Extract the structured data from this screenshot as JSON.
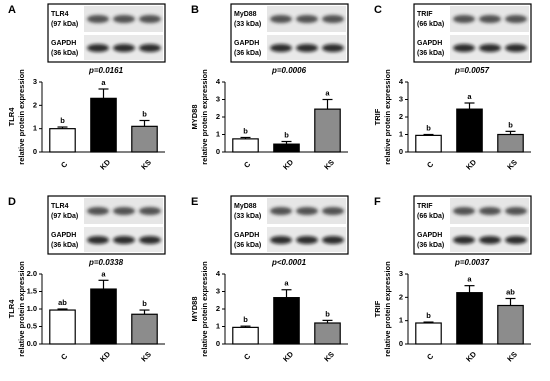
{
  "chart_data": [
    {
      "type": "bar",
      "panel": "A",
      "blot": [
        "TLR4",
        "(97 kDa)",
        "GAPDH",
        "(36 kDa)"
      ],
      "p_value": "p=0.0161",
      "y_label": [
        "TLR4",
        "relative protein expression"
      ],
      "categories": [
        "C",
        "KD",
        "KS"
      ],
      "values": [
        1.0,
        2.3,
        1.1
      ],
      "errors": [
        0.07,
        0.4,
        0.25
      ],
      "letters": [
        "b",
        "a",
        "b"
      ],
      "colors": [
        "#ffffff",
        "#000000",
        "#8c8c8c"
      ],
      "ylim": [
        0,
        3
      ],
      "yticks": [
        0,
        1,
        2,
        3
      ]
    },
    {
      "type": "bar",
      "panel": "B",
      "blot": [
        "MyD88",
        "(33 kDa)",
        "GAPDH",
        "(36 kDa)"
      ],
      "p_value": "p=0.0006",
      "y_label": [
        "MYD88",
        "relative protein expression"
      ],
      "categories": [
        "C",
        "KD",
        "KS"
      ],
      "values": [
        0.75,
        0.45,
        2.45
      ],
      "errors": [
        0.08,
        0.15,
        0.55
      ],
      "letters": [
        "b",
        "b",
        "a"
      ],
      "colors": [
        "#ffffff",
        "#000000",
        "#8c8c8c"
      ],
      "ylim": [
        0,
        4
      ],
      "yticks": [
        0,
        1,
        2,
        3,
        4
      ]
    },
    {
      "type": "bar",
      "panel": "C",
      "blot": [
        "TRIF",
        "(66 kDa)",
        "GAPDH",
        "(36 kDa)"
      ],
      "p_value": "p=0.0057",
      "y_label": [
        "TRIF",
        "relative protein expression"
      ],
      "categories": [
        "C",
        "KD",
        "KS"
      ],
      "values": [
        0.95,
        2.45,
        1.0
      ],
      "errors": [
        0.05,
        0.35,
        0.18
      ],
      "letters": [
        "b",
        "a",
        "b"
      ],
      "colors": [
        "#ffffff",
        "#000000",
        "#8c8c8c"
      ],
      "ylim": [
        0,
        4
      ],
      "yticks": [
        0,
        1,
        2,
        3,
        4
      ]
    },
    {
      "type": "bar",
      "panel": "D",
      "blot": [
        "TLR4",
        "(97 kDa)",
        "GAPDH",
        "(36 kDa)"
      ],
      "p_value": "p=0.0338",
      "y_label": [
        "TLR4",
        "relative protein expression"
      ],
      "categories": [
        "C",
        "KD",
        "KS"
      ],
      "values": [
        0.97,
        1.57,
        0.85
      ],
      "errors": [
        0.03,
        0.25,
        0.12
      ],
      "letters": [
        "ab",
        "a",
        "b"
      ],
      "colors": [
        "#ffffff",
        "#000000",
        "#8c8c8c"
      ],
      "ylim": [
        0,
        2
      ],
      "yticks": [
        {
          "value": 0,
          "label": "0.0"
        },
        {
          "value": 0.5,
          "label": "0.5"
        },
        {
          "value": 1,
          "label": "1.0"
        },
        {
          "value": 1.5,
          "label": "1.5"
        },
        {
          "value": 2,
          "label": "2.0"
        }
      ]
    },
    {
      "type": "bar",
      "panel": "E",
      "blot": [
        "MyD88",
        "(33 kDa)",
        "GAPDH",
        "(36 kDa)"
      ],
      "p_value": "p<0.0001",
      "y_label": [
        "MYD88",
        "relative protein expression"
      ],
      "categories": [
        "C",
        "KD",
        "KS"
      ],
      "values": [
        0.95,
        2.65,
        1.2
      ],
      "errors": [
        0.07,
        0.45,
        0.15
      ],
      "letters": [
        "b",
        "a",
        "b"
      ],
      "colors": [
        "#ffffff",
        "#000000",
        "#8c8c8c"
      ],
      "ylim": [
        0,
        4
      ],
      "yticks": [
        0,
        1,
        2,
        3,
        4
      ]
    },
    {
      "type": "bar",
      "panel": "F",
      "blot": [
        "TRIF",
        "(66 kDa)",
        "GAPDH",
        "(36 kDa)"
      ],
      "p_value": "p=0.0037",
      "y_label": [
        "TRIF",
        "relative protein expression"
      ],
      "categories": [
        "C",
        "KD",
        "KS"
      ],
      "values": [
        0.9,
        2.2,
        1.65
      ],
      "errors": [
        0.04,
        0.3,
        0.3
      ],
      "letters": [
        "b",
        "a",
        "ab"
      ],
      "colors": [
        "#ffffff",
        "#000000",
        "#8c8c8c"
      ],
      "ylim": [
        0,
        3
      ],
      "yticks": [
        0,
        1,
        2,
        3
      ]
    }
  ]
}
